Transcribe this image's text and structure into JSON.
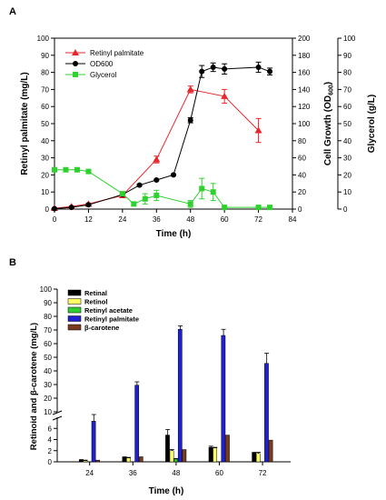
{
  "chart_data": [
    {
      "panel": "A",
      "type": "line",
      "xlabel": "Time (h)",
      "x_ticks": [
        0,
        12,
        24,
        36,
        48,
        60,
        72,
        84
      ],
      "xlim": [
        0,
        84
      ],
      "axes": {
        "left": {
          "label": "Retinyl palmitate (mg/L)",
          "ylim": [
            0,
            100
          ],
          "ticks": [
            0,
            10,
            20,
            30,
            40,
            50,
            60,
            70,
            80,
            90,
            100
          ]
        },
        "right1": {
          "label": "Cell Growth (OD600)",
          "label_main": "Cell Growth (OD",
          "label_sub": "600",
          "label_end": ")",
          "ylim": [
            0,
            200
          ],
          "ticks": [
            0,
            20,
            40,
            60,
            80,
            100,
            120,
            140,
            160,
            180,
            200
          ]
        },
        "right2": {
          "label": "Glycerol (g/L)",
          "ylim": [
            0,
            100
          ],
          "ticks": [
            0,
            10,
            20,
            30,
            40,
            50,
            60,
            70,
            80,
            90,
            100
          ]
        }
      },
      "series": [
        {
          "name": "Retinyl palmitate",
          "axis": "left",
          "color": "#e8262b",
          "marker": "triangle",
          "points": [
            [
              0,
              0.5
            ],
            [
              6,
              1.5
            ],
            [
              12,
              3
            ],
            [
              24,
              8
            ],
            [
              36,
              29
            ],
            [
              48,
              70
            ],
            [
              60,
              66
            ],
            [
              72,
              46
            ]
          ],
          "err": [
            0.3,
            0.4,
            0.5,
            1,
            2,
            2,
            4,
            7
          ]
        },
        {
          "name": "OD600",
          "axis": "right1",
          "color": "#000000",
          "marker": "circle",
          "points": [
            [
              0,
              0.5
            ],
            [
              6,
              2
            ],
            [
              12,
              5
            ],
            [
              24,
              17
            ],
            [
              30,
              28
            ],
            [
              36,
              34
            ],
            [
              42,
              40
            ],
            [
              48,
              104
            ],
            [
              52,
              161
            ],
            [
              56,
              166
            ],
            [
              60,
              164
            ],
            [
              72,
              166
            ],
            [
              76,
              161
            ]
          ],
          "err": [
            0.5,
            0.5,
            1,
            1,
            1,
            1,
            1,
            3,
            7,
            5,
            6,
            6,
            4
          ]
        },
        {
          "name": "Glycerol",
          "axis": "right2",
          "color": "#2fd12f",
          "marker": "square",
          "points": [
            [
              0,
              23
            ],
            [
              4,
              23
            ],
            [
              8,
              23
            ],
            [
              12,
              22
            ],
            [
              24,
              9
            ],
            [
              28,
              3
            ],
            [
              32,
              6
            ],
            [
              36,
              8
            ],
            [
              48,
              3
            ],
            [
              52,
              12
            ],
            [
              56,
              10
            ],
            [
              60,
              1
            ],
            [
              72,
              1
            ],
            [
              76,
              1
            ]
          ],
          "err": [
            1,
            0.5,
            0.5,
            0.5,
            1,
            1,
            3,
            3,
            2,
            6,
            5,
            0.5,
            0.5,
            0.5
          ]
        }
      ]
    },
    {
      "panel": "B",
      "type": "bar",
      "xlabel": "Time (h)",
      "ylabel": "Retinoid and β-carotene (mg/L)",
      "categories": [
        "24",
        "36",
        "48",
        "60",
        "72"
      ],
      "y_ticks_upper": [
        10,
        20,
        30,
        40,
        50,
        60,
        70,
        80,
        90,
        100
      ],
      "y_ticks_lower": [
        0,
        2,
        4,
        6
      ],
      "ylim_lower": [
        0,
        8
      ],
      "ylim_upper": [
        10,
        100
      ],
      "series": [
        {
          "name": "Retinal",
          "color": "#000000",
          "values": [
            0.3,
            0.8,
            4.8,
            2.6,
            1.6
          ],
          "err": [
            0.1,
            0.1,
            1.0,
            0.2,
            0.1
          ]
        },
        {
          "name": "Retinol",
          "color": "#ffff66",
          "values": [
            0.2,
            0.7,
            2.0,
            2.5,
            1.5
          ],
          "err": [
            0.1,
            0.1,
            0.2,
            0.1,
            0.2
          ]
        },
        {
          "name": "Retinyl acetate",
          "color": "#33cc33",
          "values": [
            0,
            0,
            0.5,
            0,
            0
          ],
          "err": [
            0,
            0,
            0.1,
            0,
            0
          ]
        },
        {
          "name": "Retinyl palmitate",
          "color": "#2020d0",
          "values": [
            7.3,
            29.5,
            70.5,
            66,
            45.5
          ],
          "err": [
            0.8,
            2.5,
            2.5,
            4.5,
            7.5
          ]
        },
        {
          "name": "β-carotene",
          "color": "#7a3b1f",
          "values": [
            0.3,
            0.9,
            2.2,
            4.8,
            3.9
          ],
          "err": [
            0,
            0,
            0,
            0,
            0
          ]
        }
      ]
    }
  ],
  "panel_labels": {
    "a": "A",
    "b": "B"
  }
}
